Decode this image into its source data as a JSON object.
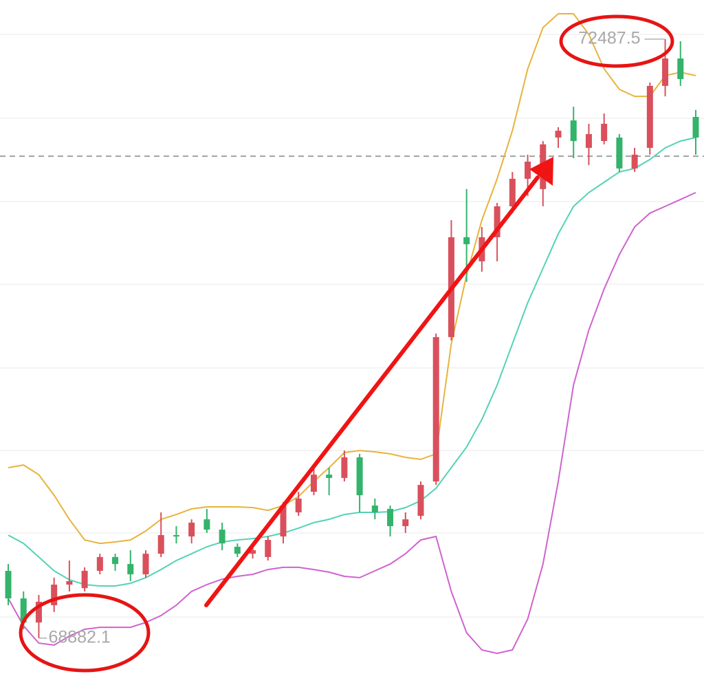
{
  "chart_data": {
    "type": "candlestick",
    "ylim": [
      68666,
      72723
    ],
    "grid_lines": [
      72516,
      72011,
      71510,
      71013,
      70508,
      70011,
      69515,
      69009
    ],
    "reference_line": 71783,
    "up_color": "#d9505c",
    "down_color": "#34b36b",
    "open": [
      69287,
      69121,
      68976,
      69080,
      69204,
      69183,
      69287,
      69370,
      69328,
      69266,
      69390,
      69502,
      69494,
      69597,
      69535,
      69432,
      69390,
      69370,
      69494,
      69639,
      69763,
      69866,
      69846,
      69970,
      69680,
      69660,
      69556,
      69618,
      69825,
      70694,
      71295,
      71150,
      71295,
      71481,
      71647,
      71585,
      71895,
      71998,
      71833,
      71874,
      71895,
      71709,
      71833,
      72206,
      72371,
      72019
    ],
    "high": [
      69328,
      69163,
      69142,
      69246,
      69349,
      69308,
      69390,
      69390,
      69411,
      69411,
      69639,
      69556,
      69597,
      69660,
      69577,
      69452,
      69432,
      69494,
      69701,
      69763,
      69908,
      69908,
      70011,
      69991,
      69722,
      69680,
      69639,
      69825,
      70715,
      71398,
      71585,
      71357,
      71502,
      71688,
      71792,
      71874,
      71957,
      72081,
      71978,
      72040,
      71916,
      71833,
      72226,
      72487.5,
      72475,
      72061
    ],
    "low": [
      69080,
      68935,
      68882.1,
      69039,
      69163,
      69163,
      69266,
      69287,
      69225,
      69246,
      69370,
      69452,
      69452,
      69515,
      69411,
      69370,
      69361,
      69349,
      69452,
      69618,
      69742,
      69742,
      69825,
      69639,
      69597,
      69494,
      69515,
      69597,
      69804,
      70674,
      71026,
      71088,
      71150,
      71440,
      71543,
      71481,
      71833,
      71771,
      71729,
      71854,
      71688,
      71688,
      71792,
      72143,
      72206,
      71792
    ],
    "close": [
      69121,
      68976,
      69101,
      69204,
      69225,
      69287,
      69370,
      69328,
      69266,
      69390,
      69502,
      69494,
      69577,
      69535,
      69452,
      69390,
      69411,
      69473,
      69680,
      69722,
      69866,
      69846,
      69970,
      69742,
      69639,
      69556,
      69597,
      69804,
      70694,
      71295,
      71253,
      71295,
      71481,
      71647,
      71750,
      71854,
      71936,
      71874,
      71916,
      71978,
      71709,
      71792,
      72206,
      72371,
      72247,
      71895
    ],
    "high_label": "72487.5",
    "low_label": "68882.1",
    "bands": [
      {
        "color": "#e8b33c",
        "values": [
          69908,
          69924,
          69866,
          69742,
          69597,
          69473,
          69452,
          69461,
          69473,
          69527,
          69597,
          69626,
          69660,
          69672,
          69672,
          69672,
          69668,
          69651,
          69680,
          69734,
          69825,
          69908,
          69999,
          70011,
          70003,
          69991,
          69970,
          69958,
          69991,
          70653,
          71067,
          71398,
          71647,
          71936,
          72309,
          72557,
          72640,
          72640,
          72516,
          72309,
          72185,
          72143,
          72143,
          72268,
          72288,
          72268
        ]
      },
      {
        "color": "#52d3b6",
        "values": [
          69502,
          69452,
          69370,
          69287,
          69233,
          69204,
          69196,
          69196,
          69212,
          69246,
          69295,
          69349,
          69390,
          69432,
          69461,
          69473,
          69481,
          69494,
          69515,
          69544,
          69577,
          69597,
          69626,
          69639,
          69639,
          69643,
          69668,
          69709,
          69784,
          69908,
          70032,
          70198,
          70405,
          70653,
          70901,
          71108,
          71315,
          71481,
          71564,
          71626,
          71688,
          71709,
          71763,
          71833,
          71874,
          71895
        ]
      },
      {
        "color": "#cf62cf",
        "values": [
          69121,
          68956,
          68852,
          68840,
          68894,
          68935,
          68947,
          68947,
          68947,
          68976,
          69018,
          69080,
          69163,
          69204,
          69237,
          69254,
          69266,
          69295,
          69308,
          69308,
          69295,
          69279,
          69254,
          69246,
          69287,
          69328,
          69390,
          69473,
          69494,
          69163,
          68914,
          68811,
          68790,
          68811,
          68997,
          69328,
          69825,
          70405,
          70736,
          70984,
          71191,
          71357,
          71440,
          71481,
          71522,
          71564
        ]
      }
    ]
  }
}
